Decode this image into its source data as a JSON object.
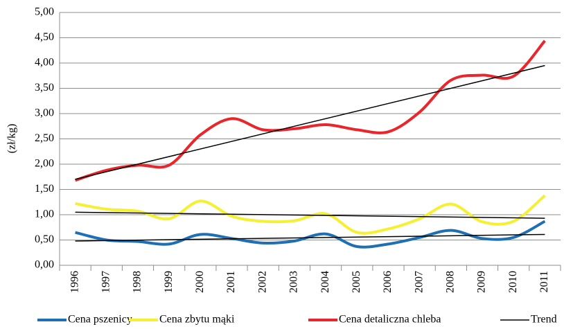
{
  "chart_data": {
    "type": "line",
    "y_label": "(zł/kg)",
    "categories": [
      "1996",
      "1997",
      "1998",
      "1999",
      "2000",
      "2001",
      "2002",
      "2003",
      "2004",
      "2005",
      "2006",
      "2007",
      "2008",
      "2009",
      "2010",
      "2011"
    ],
    "series": [
      {
        "name": "Cena pszenicy",
        "color": "#1f6fb5",
        "values": [
          0.65,
          0.5,
          0.47,
          0.42,
          0.61,
          0.53,
          0.44,
          0.48,
          0.62,
          0.37,
          0.42,
          0.55,
          0.69,
          0.53,
          0.55,
          0.87
        ]
      },
      {
        "name": "Cena zbytu mąki",
        "color": "#f5f032",
        "values": [
          1.22,
          1.11,
          1.07,
          0.92,
          1.27,
          0.97,
          0.87,
          0.88,
          1.02,
          0.65,
          0.72,
          0.92,
          1.21,
          0.86,
          0.87,
          1.38
        ]
      },
      {
        "name": "Cena detaliczna chleba",
        "color": "#e8262b",
        "values": [
          1.68,
          1.88,
          1.98,
          1.98,
          2.58,
          2.9,
          2.68,
          2.7,
          2.78,
          2.68,
          2.64,
          3.03,
          3.66,
          3.76,
          3.74,
          4.44
        ]
      },
      {
        "name": "Trend",
        "color": "#000000",
        "segments": [
          [
            0.48,
            0.61
          ],
          [
            1.05,
            0.93
          ],
          [
            1.7,
            3.95
          ]
        ]
      }
    ],
    "ylim": [
      0,
      5
    ],
    "yticks": [
      {
        "value": 0,
        "label": "0,00"
      },
      {
        "value": 0.5,
        "label": "0,50"
      },
      {
        "value": 1,
        "label": "1,00"
      },
      {
        "value": 1.5,
        "label": "1,50"
      },
      {
        "value": 2,
        "label": "2,00"
      },
      {
        "value": 2.5,
        "label": "2,50"
      },
      {
        "value": 3,
        "label": "3,00"
      },
      {
        "value": 3.5,
        "label": "3,50"
      },
      {
        "value": 4,
        "label": "4,00"
      },
      {
        "value": 4.5,
        "label": "4,50"
      },
      {
        "value": 5,
        "label": "5,00"
      }
    ],
    "grid": true,
    "legend": "bottom"
  }
}
